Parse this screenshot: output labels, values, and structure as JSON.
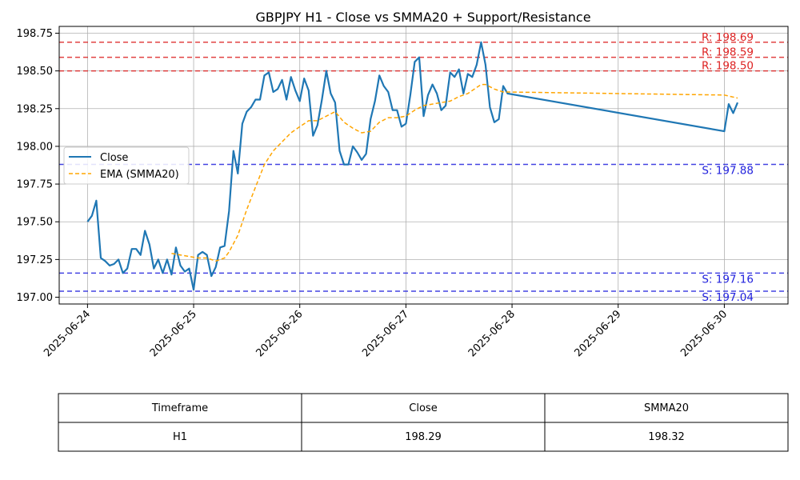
{
  "chart_data": {
    "type": "line",
    "title": "GBPJPY H1 - Close vs SMMA20 + Support/Resistance",
    "xlabel": "",
    "ylabel": "",
    "x_range": [
      "2025-06-23T17:36",
      "2025-06-30T14:24"
    ],
    "ylim": [
      196.955,
      198.795
    ],
    "x_tick_labels": [
      "2025-06-24",
      "2025-06-25",
      "2025-06-26",
      "2025-06-27",
      "2025-06-28",
      "2025-06-29",
      "2025-06-30"
    ],
    "x_tick_dates": [
      "2025-06-24T00:00",
      "2025-06-25T00:00",
      "2025-06-26T00:00",
      "2025-06-27T00:00",
      "2025-06-28T00:00",
      "2025-06-29T00:00",
      "2025-06-30T00:00"
    ],
    "y_ticks": [
      197.0,
      197.25,
      197.5,
      197.75,
      198.0,
      198.25,
      198.5,
      198.75
    ],
    "y_tick_labels": [
      "197.00",
      "197.25",
      "197.50",
      "197.75",
      "198.00",
      "198.25",
      "198.50",
      "198.75"
    ],
    "grid": true,
    "legend_position": "center-left",
    "series": [
      {
        "name": "Close",
        "color": "#1f77b4",
        "style": "solid",
        "points": [
          [
            "2025-06-24T00:00",
            197.5
          ],
          [
            "2025-06-24T01:00",
            197.54
          ],
          [
            "2025-06-24T02:00",
            197.64
          ],
          [
            "2025-06-24T03:00",
            197.26
          ],
          [
            "2025-06-24T04:00",
            197.24
          ],
          [
            "2025-06-24T05:00",
            197.21
          ],
          [
            "2025-06-24T06:00",
            197.22
          ],
          [
            "2025-06-24T07:00",
            197.25
          ],
          [
            "2025-06-24T08:00",
            197.16
          ],
          [
            "2025-06-24T09:00",
            197.19
          ],
          [
            "2025-06-24T10:00",
            197.32
          ],
          [
            "2025-06-24T11:00",
            197.32
          ],
          [
            "2025-06-24T12:00",
            197.28
          ],
          [
            "2025-06-24T13:00",
            197.44
          ],
          [
            "2025-06-24T14:00",
            197.35
          ],
          [
            "2025-06-24T15:00",
            197.19
          ],
          [
            "2025-06-24T16:00",
            197.25
          ],
          [
            "2025-06-24T17:00",
            197.16
          ],
          [
            "2025-06-24T18:00",
            197.25
          ],
          [
            "2025-06-24T19:00",
            197.15
          ],
          [
            "2025-06-24T20:00",
            197.33
          ],
          [
            "2025-06-24T21:00",
            197.21
          ],
          [
            "2025-06-24T22:00",
            197.17
          ],
          [
            "2025-06-24T23:00",
            197.19
          ],
          [
            "2025-06-25T00:00",
            197.05
          ],
          [
            "2025-06-25T01:00",
            197.28
          ],
          [
            "2025-06-25T02:00",
            197.3
          ],
          [
            "2025-06-25T03:00",
            197.28
          ],
          [
            "2025-06-25T04:00",
            197.14
          ],
          [
            "2025-06-25T05:00",
            197.2
          ],
          [
            "2025-06-25T06:00",
            197.33
          ],
          [
            "2025-06-25T07:00",
            197.34
          ],
          [
            "2025-06-25T08:00",
            197.57
          ],
          [
            "2025-06-25T09:00",
            197.97
          ],
          [
            "2025-06-25T10:00",
            197.82
          ],
          [
            "2025-06-25T11:00",
            198.15
          ],
          [
            "2025-06-25T12:00",
            198.23
          ],
          [
            "2025-06-25T13:00",
            198.26
          ],
          [
            "2025-06-25T14:00",
            198.31
          ],
          [
            "2025-06-25T15:00",
            198.31
          ],
          [
            "2025-06-25T16:00",
            198.47
          ],
          [
            "2025-06-25T17:00",
            198.49
          ],
          [
            "2025-06-25T18:00",
            198.36
          ],
          [
            "2025-06-25T19:00",
            198.38
          ],
          [
            "2025-06-25T20:00",
            198.44
          ],
          [
            "2025-06-25T21:00",
            198.31
          ],
          [
            "2025-06-25T22:00",
            198.46
          ],
          [
            "2025-06-25T23:00",
            198.37
          ],
          [
            "2025-06-26T00:00",
            198.3
          ],
          [
            "2025-06-26T01:00",
            198.45
          ],
          [
            "2025-06-26T02:00",
            198.37
          ],
          [
            "2025-06-26T03:00",
            198.07
          ],
          [
            "2025-06-26T04:00",
            198.14
          ],
          [
            "2025-06-26T05:00",
            198.31
          ],
          [
            "2025-06-26T06:00",
            198.5
          ],
          [
            "2025-06-26T07:00",
            198.35
          ],
          [
            "2025-06-26T08:00",
            198.29
          ],
          [
            "2025-06-26T09:00",
            197.97
          ],
          [
            "2025-06-26T10:00",
            197.88
          ],
          [
            "2025-06-26T11:00",
            197.88
          ],
          [
            "2025-06-26T12:00",
            198.0
          ],
          [
            "2025-06-26T13:00",
            197.96
          ],
          [
            "2025-06-26T14:00",
            197.91
          ],
          [
            "2025-06-26T15:00",
            197.95
          ],
          [
            "2025-06-26T16:00",
            198.18
          ],
          [
            "2025-06-26T17:00",
            198.3
          ],
          [
            "2025-06-26T18:00",
            198.47
          ],
          [
            "2025-06-26T19:00",
            198.4
          ],
          [
            "2025-06-26T20:00",
            198.36
          ],
          [
            "2025-06-26T21:00",
            198.24
          ],
          [
            "2025-06-26T22:00",
            198.24
          ],
          [
            "2025-06-26T23:00",
            198.13
          ],
          [
            "2025-06-27T00:00",
            198.15
          ],
          [
            "2025-06-27T01:00",
            198.34
          ],
          [
            "2025-06-27T02:00",
            198.56
          ],
          [
            "2025-06-27T03:00",
            198.59
          ],
          [
            "2025-06-27T04:00",
            198.2
          ],
          [
            "2025-06-27T05:00",
            198.34
          ],
          [
            "2025-06-27T06:00",
            198.41
          ],
          [
            "2025-06-27T07:00",
            198.35
          ],
          [
            "2025-06-27T08:00",
            198.24
          ],
          [
            "2025-06-27T09:00",
            198.27
          ],
          [
            "2025-06-27T10:00",
            198.49
          ],
          [
            "2025-06-27T11:00",
            198.46
          ],
          [
            "2025-06-27T12:00",
            198.51
          ],
          [
            "2025-06-27T13:00",
            198.35
          ],
          [
            "2025-06-27T14:00",
            198.48
          ],
          [
            "2025-06-27T15:00",
            198.46
          ],
          [
            "2025-06-27T16:00",
            198.54
          ],
          [
            "2025-06-27T17:00",
            198.69
          ],
          [
            "2025-06-27T18:00",
            198.54
          ],
          [
            "2025-06-27T19:00",
            198.26
          ],
          [
            "2025-06-27T20:00",
            198.16
          ],
          [
            "2025-06-27T21:00",
            198.18
          ],
          [
            "2025-06-27T22:00",
            198.4
          ],
          [
            "2025-06-27T23:00",
            198.35
          ],
          [
            "2025-06-30T00:00",
            198.1
          ],
          [
            "2025-06-30T01:00",
            198.28
          ],
          [
            "2025-06-30T02:00",
            198.22
          ],
          [
            "2025-06-30T03:00",
            198.29
          ]
        ]
      },
      {
        "name": "EMA (SMMA20)",
        "color": "#ffa500",
        "style": "dashed",
        "points": [
          [
            "2025-06-24T19:00",
            197.29
          ],
          [
            "2025-06-24T21:00",
            197.28
          ],
          [
            "2025-06-24T23:00",
            197.27
          ],
          [
            "2025-06-25T01:00",
            197.26
          ],
          [
            "2025-06-25T03:00",
            197.26
          ],
          [
            "2025-06-25T05:00",
            197.24
          ],
          [
            "2025-06-25T07:00",
            197.26
          ],
          [
            "2025-06-25T08:00",
            197.3
          ],
          [
            "2025-06-25T10:00",
            197.41
          ],
          [
            "2025-06-25T12:00",
            197.58
          ],
          [
            "2025-06-25T14:00",
            197.73
          ],
          [
            "2025-06-25T16:00",
            197.88
          ],
          [
            "2025-06-25T18:00",
            197.97
          ],
          [
            "2025-06-25T20:00",
            198.03
          ],
          [
            "2025-06-25T22:00",
            198.09
          ],
          [
            "2025-06-26T00:00",
            198.13
          ],
          [
            "2025-06-26T02:00",
            198.17
          ],
          [
            "2025-06-26T04:00",
            198.17
          ],
          [
            "2025-06-26T06:00",
            198.2
          ],
          [
            "2025-06-26T08:00",
            198.23
          ],
          [
            "2025-06-26T10:00",
            198.16
          ],
          [
            "2025-06-26T12:00",
            198.12
          ],
          [
            "2025-06-26T14:00",
            198.09
          ],
          [
            "2025-06-26T16:00",
            198.1
          ],
          [
            "2025-06-26T18:00",
            198.16
          ],
          [
            "2025-06-26T20:00",
            198.19
          ],
          [
            "2025-06-26T22:00",
            198.19
          ],
          [
            "2025-06-27T00:00",
            198.2
          ],
          [
            "2025-06-27T02:00",
            198.24
          ],
          [
            "2025-06-27T04:00",
            198.27
          ],
          [
            "2025-06-27T06:00",
            198.28
          ],
          [
            "2025-06-27T08:00",
            198.29
          ],
          [
            "2025-06-27T10:00",
            198.3
          ],
          [
            "2025-06-27T12:00",
            198.33
          ],
          [
            "2025-06-27T14:00",
            198.35
          ],
          [
            "2025-06-27T16:00",
            198.39
          ],
          [
            "2025-06-27T17:00",
            198.41
          ],
          [
            "2025-06-27T18:00",
            198.41
          ],
          [
            "2025-06-27T20:00",
            198.38
          ],
          [
            "2025-06-27T22:00",
            198.36
          ],
          [
            "2025-06-27T23:00",
            198.36
          ],
          [
            "2025-06-30T00:00",
            198.34
          ],
          [
            "2025-06-30T03:00",
            198.32
          ]
        ]
      }
    ],
    "levels": [
      {
        "kind": "resistance",
        "value": 198.69,
        "label": "R: 198.69",
        "color": "#dd2222"
      },
      {
        "kind": "resistance",
        "value": 198.59,
        "label": "R: 198.59",
        "color": "#dd2222"
      },
      {
        "kind": "resistance",
        "value": 198.5,
        "label": "R: 198.50",
        "color": "#dd2222"
      },
      {
        "kind": "support",
        "value": 197.88,
        "label": "S: 197.88",
        "color": "#2222dd"
      },
      {
        "kind": "support",
        "value": 197.16,
        "label": "S: 197.16",
        "color": "#2222dd"
      },
      {
        "kind": "support",
        "value": 197.04,
        "label": "S: 197.04",
        "color": "#2222dd"
      }
    ]
  },
  "table": {
    "headers": [
      "Timeframe",
      "Close",
      "SMMA20"
    ],
    "rows": [
      [
        "H1",
        "198.29",
        "198.32"
      ]
    ]
  }
}
